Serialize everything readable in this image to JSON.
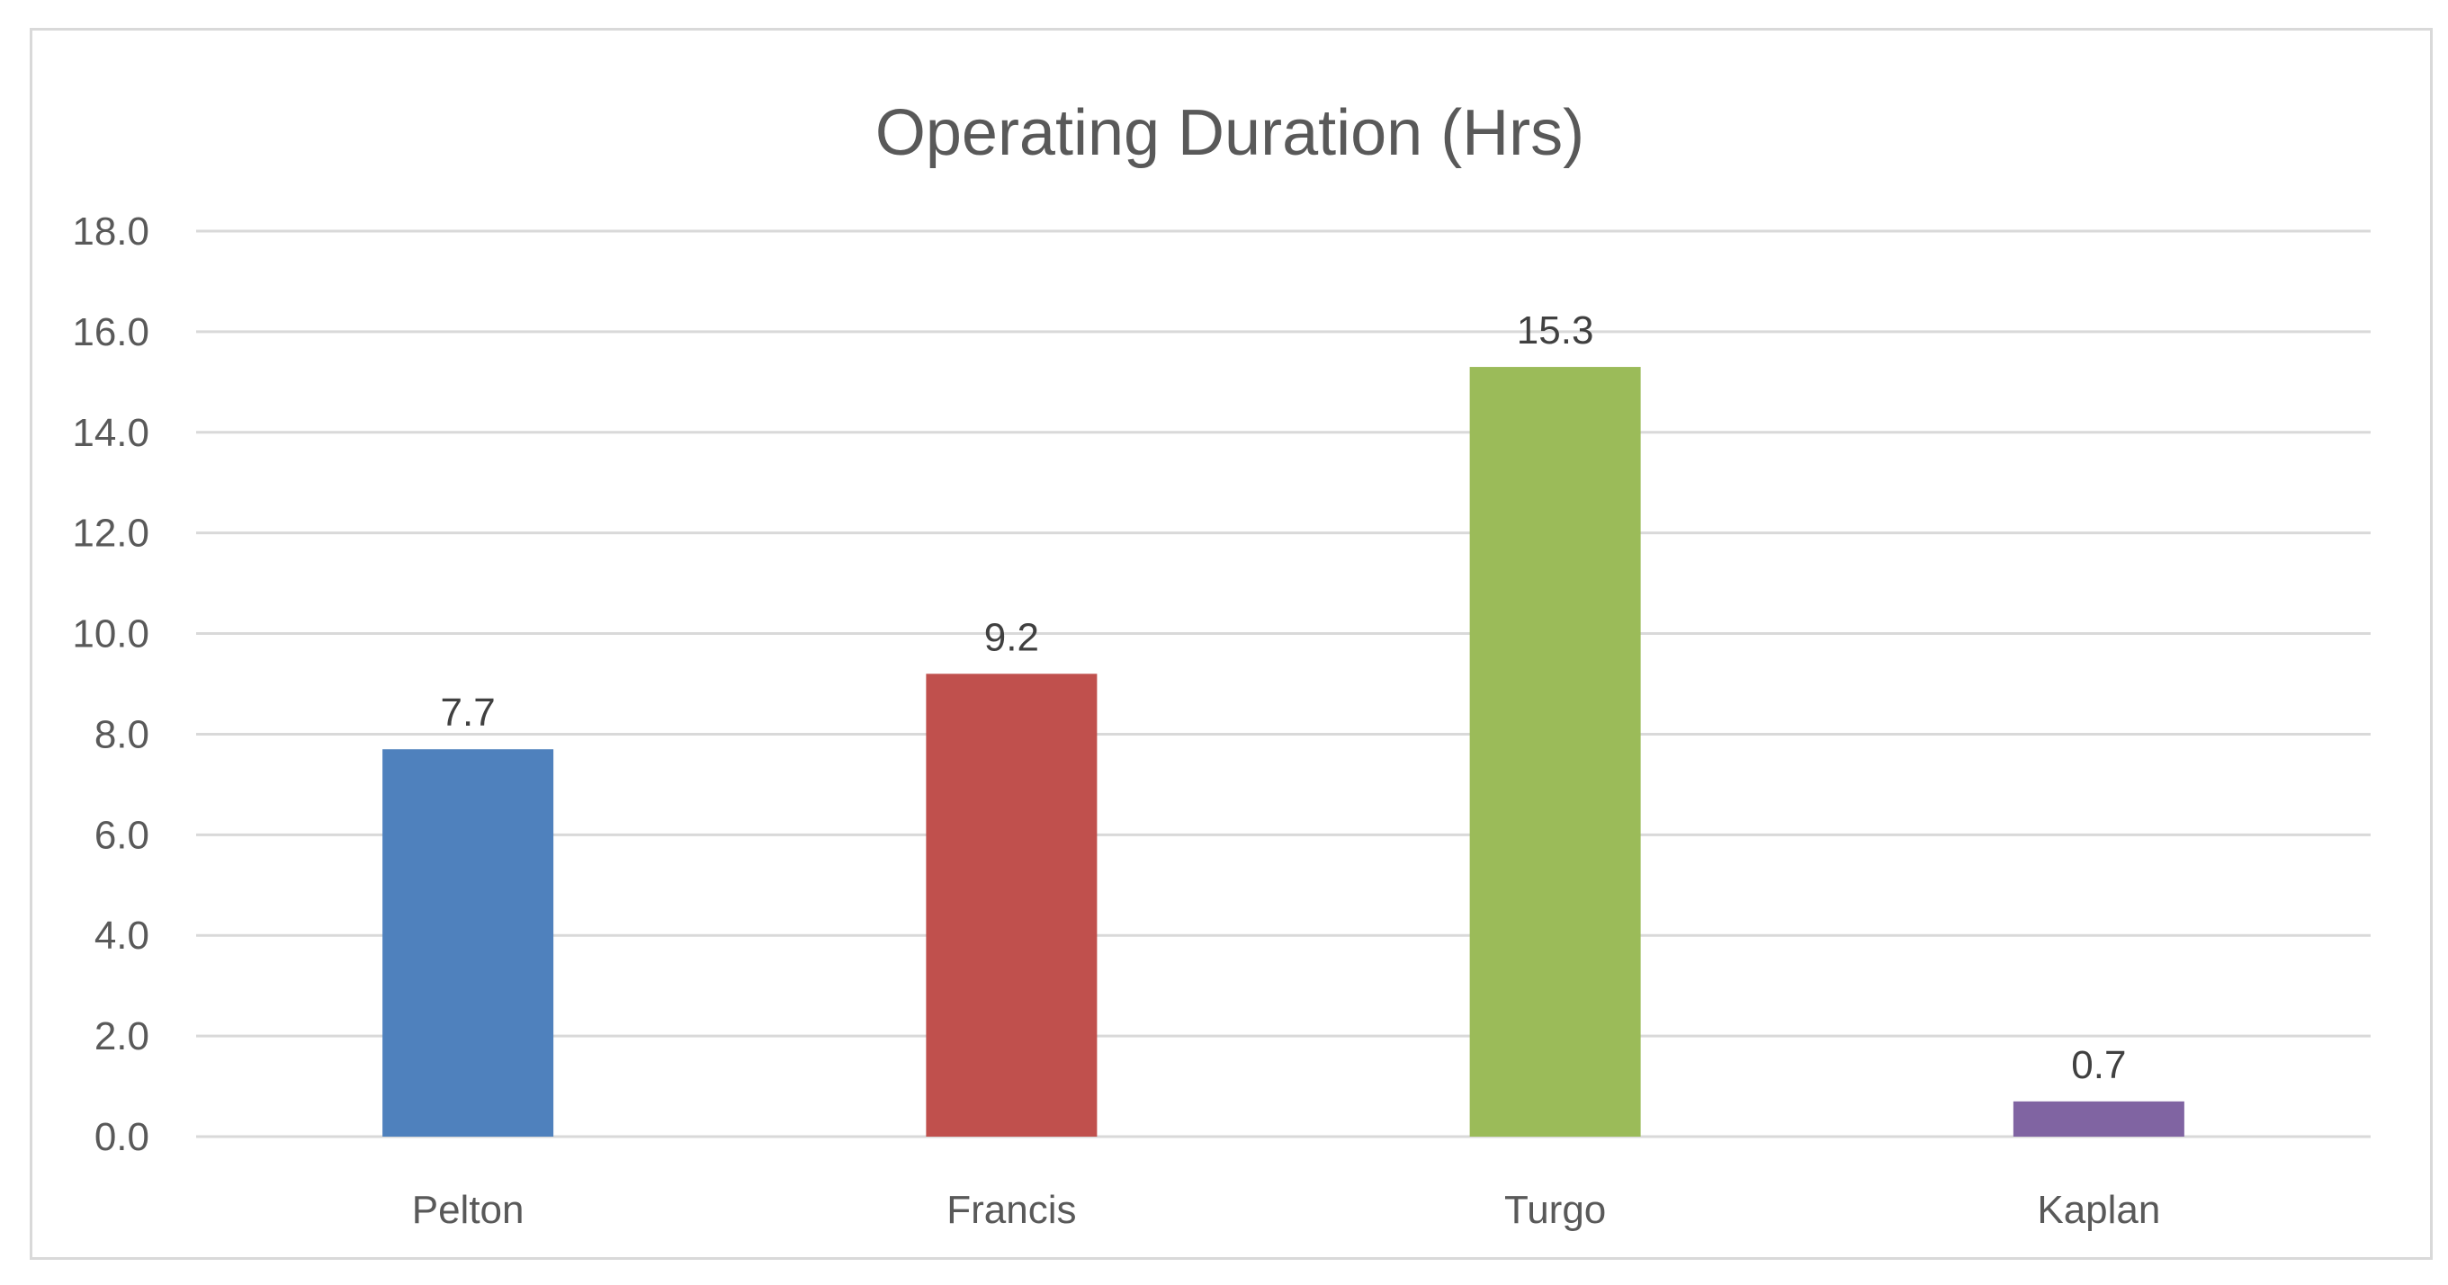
{
  "chart_data": {
    "type": "bar",
    "title": "Operating Duration (Hrs)",
    "xlabel": "",
    "ylabel": "",
    "categories": [
      "Pelton",
      "Francis",
      "Turgo",
      "Kaplan"
    ],
    "values": [
      7.7,
      9.2,
      15.3,
      0.7
    ],
    "value_labels": [
      "7.7",
      "9.2",
      "15.3",
      "0.7"
    ],
    "colors": [
      "#4f81bd",
      "#c0504d",
      "#9bbb59",
      "#8064a2"
    ],
    "ylim": [
      0,
      18
    ],
    "yticks": [
      0,
      2,
      4,
      6,
      8,
      10,
      12,
      14,
      16,
      18
    ],
    "ytick_labels": [
      "0.0",
      "2.0",
      "4.0",
      "6.0",
      "8.0",
      "10.0",
      "12.0",
      "14.0",
      "16.0",
      "18.0"
    ],
    "grid": true,
    "legend": "none"
  }
}
